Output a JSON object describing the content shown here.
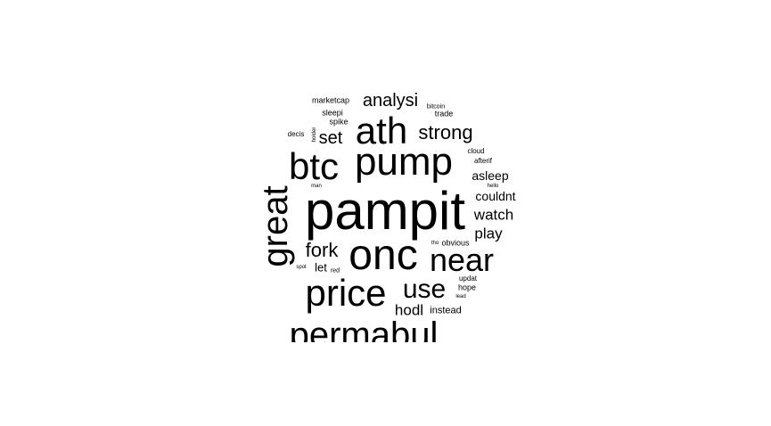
{
  "word_cloud": {
    "words": [
      {
        "text": "pampit",
        "size": 60
      },
      {
        "text": "onc",
        "size": 48
      },
      {
        "text": "pump",
        "size": 44
      },
      {
        "text": "ath",
        "size": 42
      },
      {
        "text": "btc",
        "size": 42
      },
      {
        "text": "price",
        "size": 42
      },
      {
        "text": "great",
        "size": 40,
        "rotated": true
      },
      {
        "text": "near",
        "size": 36
      },
      {
        "text": "permabul",
        "size": 40
      },
      {
        "text": "use",
        "size": 30
      },
      {
        "text": "fork",
        "size": 22
      },
      {
        "text": "strong",
        "size": 22
      },
      {
        "text": "set",
        "size": 20
      },
      {
        "text": "analysi",
        "size": 20
      },
      {
        "text": "hodl",
        "size": 17
      },
      {
        "text": "watch",
        "size": 17
      },
      {
        "text": "play",
        "size": 17
      },
      {
        "text": "couldnt",
        "size": 14
      },
      {
        "text": "asleep",
        "size": 14
      },
      {
        "text": "let",
        "size": 13
      },
      {
        "text": "instead",
        "size": 11
      },
      {
        "text": "marketcap",
        "size": 9
      },
      {
        "text": "sleepi",
        "size": 9
      },
      {
        "text": "spike",
        "size": 9
      },
      {
        "text": "decis",
        "size": 8
      },
      {
        "text": "trade",
        "size": 9
      },
      {
        "text": "afterif",
        "size": 8
      },
      {
        "text": "cloud",
        "size": 8
      },
      {
        "text": "hope",
        "size": 9
      },
      {
        "text": "obvious",
        "size": 9
      },
      {
        "text": "updat",
        "size": 8
      },
      {
        "text": "bitcoin",
        "size": 7
      },
      {
        "text": "hello",
        "size": 6
      },
      {
        "text": "man",
        "size": 6
      },
      {
        "text": "red",
        "size": 7
      },
      {
        "text": "spot",
        "size": 6
      },
      {
        "text": "lead",
        "size": 6
      },
      {
        "text": "tho",
        "size": 6
      },
      {
        "text": "holder",
        "size": 6,
        "rotated": true
      }
    ]
  }
}
